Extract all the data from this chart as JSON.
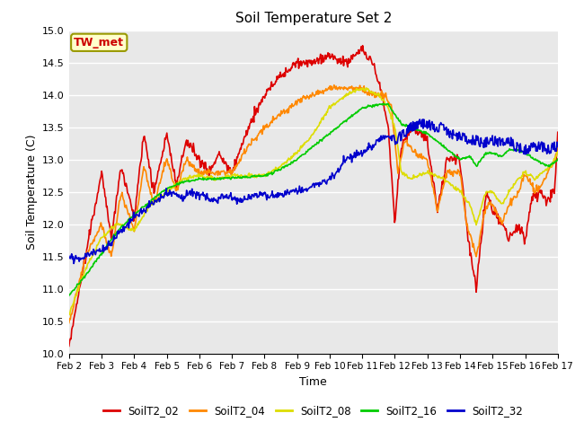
{
  "title": "Soil Temperature Set 2",
  "xlabel": "Time",
  "ylabel": "Soil Temperature (C)",
  "ylim": [
    10.0,
    15.0
  ],
  "yticks": [
    10.0,
    10.5,
    11.0,
    11.5,
    12.0,
    12.5,
    13.0,
    13.5,
    14.0,
    14.5,
    15.0
  ],
  "background_color": "#dcdcdc",
  "plot_bg": "#e8e8e8",
  "annotation_text": "TW_met",
  "annotation_color": "#cc0000",
  "annotation_bg": "#ffffcc",
  "annotation_edge": "#999900",
  "series": [
    {
      "label": "SoilT2_02",
      "color": "#dd0000"
    },
    {
      "label": "SoilT2_04",
      "color": "#ff8800"
    },
    {
      "label": "SoilT2_08",
      "color": "#dddd00"
    },
    {
      "label": "SoilT2_16",
      "color": "#00cc00"
    },
    {
      "label": "SoilT2_32",
      "color": "#0000cc"
    }
  ],
  "xtick_labels": [
    "Feb 2",
    "Feb 3",
    "Feb 4",
    "Feb 5",
    "Feb 6",
    "Feb 7",
    "Feb 8",
    "Feb 9",
    "Feb 10",
    "Feb 11",
    "Feb 12",
    "Feb 13",
    "Feb 14",
    "Feb 15",
    "Feb 16",
    "Feb 17"
  ],
  "num_days": 15,
  "points_per_day": 48
}
